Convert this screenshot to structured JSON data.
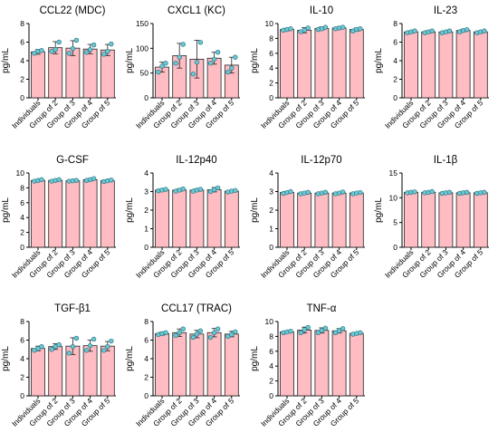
{
  "colors": {
    "bar_fill": "#FFBCC2",
    "bar_stroke": "#222222",
    "point_fill": "#6CC7D3",
    "point_stroke": "#1f6f7a",
    "axis": "#000000"
  },
  "chart_data": [
    {
      "type": "bar",
      "title": "CCL22 (MDC)",
      "ylabel": "pg/mL",
      "ylim": [
        0,
        8
      ],
      "yticks": [
        0,
        2,
        4,
        6,
        8
      ],
      "categories": [
        "Individuals",
        "Group of 2",
        "Group of 3",
        "Group of 4",
        "Group of 5"
      ],
      "values": [
        4.95,
        5.4,
        5.35,
        5.25,
        5.15
      ],
      "errors": [
        0.25,
        0.65,
        0.8,
        0.5,
        0.6
      ],
      "points": [
        [
          4.8,
          5.0,
          5.1
        ],
        [
          5.0,
          5.2,
          6.0
        ],
        [
          4.8,
          5.3,
          6.2
        ],
        [
          4.9,
          5.2,
          5.7
        ],
        [
          4.7,
          5.0,
          5.8
        ]
      ]
    },
    {
      "type": "bar",
      "title": "CXCL1 (KC)",
      "ylabel": "pg/mL",
      "ylim": [
        0,
        150
      ],
      "yticks": [
        0,
        50,
        100,
        150
      ],
      "categories": [
        "Individuals",
        "Group of 2",
        "Group of 3",
        "Group of 4",
        "Group of 5"
      ],
      "values": [
        62,
        85,
        78,
        80,
        66
      ],
      "errors": [
        10,
        25,
        38,
        12,
        16
      ],
      "points": [
        [
          52,
          64,
          70
        ],
        [
          70,
          82,
          108
        ],
        [
          48,
          72,
          112
        ],
        [
          70,
          78,
          92
        ],
        [
          52,
          60,
          82
        ]
      ]
    },
    {
      "type": "bar",
      "title": "IL-10",
      "ylabel": "pg/mL",
      "ylim": [
        0,
        10
      ],
      "yticks": [
        0,
        2,
        4,
        6,
        8,
        10
      ],
      "categories": [
        "Individuals",
        "Group of 2",
        "Group of 3",
        "Group of 4",
        "Group of 5"
      ],
      "values": [
        9.2,
        9.1,
        9.35,
        9.4,
        9.2
      ],
      "errors": [
        0.15,
        0.35,
        0.2,
        0.15,
        0.2
      ],
      "points": [
        [
          9.1,
          9.2,
          9.3
        ],
        [
          8.9,
          9.1,
          9.4
        ],
        [
          9.2,
          9.3,
          9.5
        ],
        [
          9.3,
          9.4,
          9.5
        ],
        [
          9.0,
          9.2,
          9.3
        ]
      ]
    },
    {
      "type": "bar",
      "title": "IL-23",
      "ylabel": "pg/mL",
      "ylim": [
        0,
        8
      ],
      "yticks": [
        0,
        2,
        4,
        6,
        8
      ],
      "categories": [
        "Individuals",
        "Group of 2",
        "Group of 3",
        "Group of 4",
        "Group of 5"
      ],
      "values": [
        7.1,
        7.1,
        7.1,
        7.25,
        7.1
      ],
      "errors": [
        0.1,
        0.12,
        0.1,
        0.12,
        0.1
      ],
      "points": [
        [
          7.0,
          7.1,
          7.2
        ],
        [
          7.0,
          7.1,
          7.2
        ],
        [
          7.0,
          7.1,
          7.2
        ],
        [
          7.1,
          7.25,
          7.35
        ],
        [
          7.0,
          7.1,
          7.2
        ]
      ]
    },
    {
      "type": "bar",
      "title": "G-CSF",
      "ylabel": "pg/mL",
      "ylim": [
        0,
        10
      ],
      "yticks": [
        0,
        2,
        4,
        6,
        8,
        10
      ],
      "categories": [
        "Individuals",
        "Group of 2",
        "Group of 3",
        "Group of 4",
        "Group of 5"
      ],
      "values": [
        9.0,
        9.0,
        8.95,
        9.1,
        8.95
      ],
      "errors": [
        0.1,
        0.1,
        0.1,
        0.15,
        0.1
      ],
      "points": [
        [
          8.9,
          9.0,
          9.1
        ],
        [
          8.9,
          9.0,
          9.1
        ],
        [
          8.9,
          8.95,
          9.0
        ],
        [
          9.0,
          9.1,
          9.25
        ],
        [
          8.85,
          8.95,
          9.05
        ]
      ]
    },
    {
      "type": "bar",
      "title": "IL-12p40",
      "ylabel": "pg/mL",
      "ylim": [
        0,
        4
      ],
      "yticks": [
        0,
        1,
        2,
        3,
        4
      ],
      "categories": [
        "Individuals",
        "Group of 2",
        "Group of 3",
        "Group of 4",
        "Group of 5"
      ],
      "values": [
        3.08,
        3.08,
        3.08,
        3.1,
        3.02
      ],
      "errors": [
        0.05,
        0.06,
        0.06,
        0.12,
        0.05
      ],
      "points": [
        [
          3.04,
          3.08,
          3.12
        ],
        [
          3.02,
          3.08,
          3.14
        ],
        [
          3.02,
          3.08,
          3.12
        ],
        [
          3.0,
          3.1,
          3.2
        ],
        [
          2.98,
          3.02,
          3.06
        ]
      ]
    },
    {
      "type": "bar",
      "title": "IL-12p70",
      "ylabel": "pg/mL",
      "ylim": [
        0,
        4
      ],
      "yticks": [
        0,
        1,
        2,
        3,
        4
      ],
      "categories": [
        "Individuals",
        "Group of 2",
        "Group of 3",
        "Group of 4",
        "Group of 5"
      ],
      "values": [
        2.95,
        2.92,
        2.92,
        2.92,
        2.92
      ],
      "errors": [
        0.05,
        0.05,
        0.05,
        0.05,
        0.04
      ],
      "points": [
        [
          2.9,
          2.95,
          3.0
        ],
        [
          2.88,
          2.92,
          2.96
        ],
        [
          2.88,
          2.92,
          2.96
        ],
        [
          2.88,
          2.92,
          2.98
        ],
        [
          2.88,
          2.92,
          2.95
        ]
      ]
    },
    {
      "type": "bar",
      "title": "IL-1β",
      "ylabel": "pg/mL",
      "ylim": [
        0,
        15
      ],
      "yticks": [
        0,
        5,
        10,
        15
      ],
      "categories": [
        "Individuals",
        "Group of 2",
        "Group of 3",
        "Group of 4",
        "Group of 5"
      ],
      "values": [
        11.1,
        11.1,
        11.0,
        11.0,
        11.0
      ],
      "errors": [
        0.15,
        0.15,
        0.12,
        0.12,
        0.12
      ],
      "points": [
        [
          11.0,
          11.1,
          11.2
        ],
        [
          11.0,
          11.1,
          11.25
        ],
        [
          10.9,
          11.0,
          11.1
        ],
        [
          10.9,
          11.0,
          11.1
        ],
        [
          10.9,
          11.0,
          11.1
        ]
      ]
    },
    {
      "type": "bar",
      "title": "TGF-β1",
      "ylabel": "pg/mL",
      "ylim": [
        0,
        8
      ],
      "yticks": [
        0,
        2,
        4,
        6,
        8
      ],
      "categories": [
        "Individuals",
        "Group of 2",
        "Group of 3",
        "Group of 4",
        "Group of 5"
      ],
      "values": [
        5.1,
        5.3,
        5.35,
        5.4,
        5.35
      ],
      "errors": [
        0.25,
        0.3,
        0.9,
        0.6,
        0.5
      ],
      "points": [
        [
          4.9,
          5.1,
          5.3
        ],
        [
          5.0,
          5.3,
          5.5
        ],
        [
          4.6,
          5.3,
          6.2
        ],
        [
          4.9,
          5.4,
          6.1
        ],
        [
          4.9,
          5.3,
          5.9
        ]
      ]
    },
    {
      "type": "bar",
      "title": "CCL17 (TRAC)",
      "ylabel": "pg/mL",
      "ylim": [
        0,
        8
      ],
      "yticks": [
        0,
        2,
        4,
        6,
        8
      ],
      "categories": [
        "Individuals",
        "Group of 2",
        "Group of 3",
        "Group of 4",
        "Group of 5"
      ],
      "values": [
        6.7,
        6.8,
        6.65,
        6.8,
        6.65
      ],
      "errors": [
        0.15,
        0.4,
        0.4,
        0.45,
        0.3
      ],
      "points": [
        [
          6.6,
          6.7,
          6.8
        ],
        [
          6.5,
          6.8,
          7.2
        ],
        [
          6.3,
          6.65,
          7.0
        ],
        [
          6.3,
          6.8,
          7.2
        ],
        [
          6.4,
          6.6,
          6.9
        ]
      ]
    },
    {
      "type": "bar",
      "title": "TNF-α",
      "ylabel": "pg/mL",
      "ylim": [
        0,
        10
      ],
      "yticks": [
        0,
        2,
        4,
        6,
        8,
        10
      ],
      "categories": [
        "Individuals",
        "Group of 2",
        "Group of 3",
        "Group of 4",
        "Group of 5"
      ],
      "values": [
        8.6,
        8.85,
        8.8,
        8.75,
        8.4
      ],
      "errors": [
        0.1,
        0.4,
        0.35,
        0.3,
        0.1
      ],
      "points": [
        [
          8.5,
          8.6,
          8.7
        ],
        [
          8.5,
          8.9,
          9.2
        ],
        [
          8.5,
          8.8,
          9.1
        ],
        [
          8.5,
          8.75,
          9.05
        ],
        [
          8.3,
          8.4,
          8.5
        ]
      ]
    }
  ]
}
